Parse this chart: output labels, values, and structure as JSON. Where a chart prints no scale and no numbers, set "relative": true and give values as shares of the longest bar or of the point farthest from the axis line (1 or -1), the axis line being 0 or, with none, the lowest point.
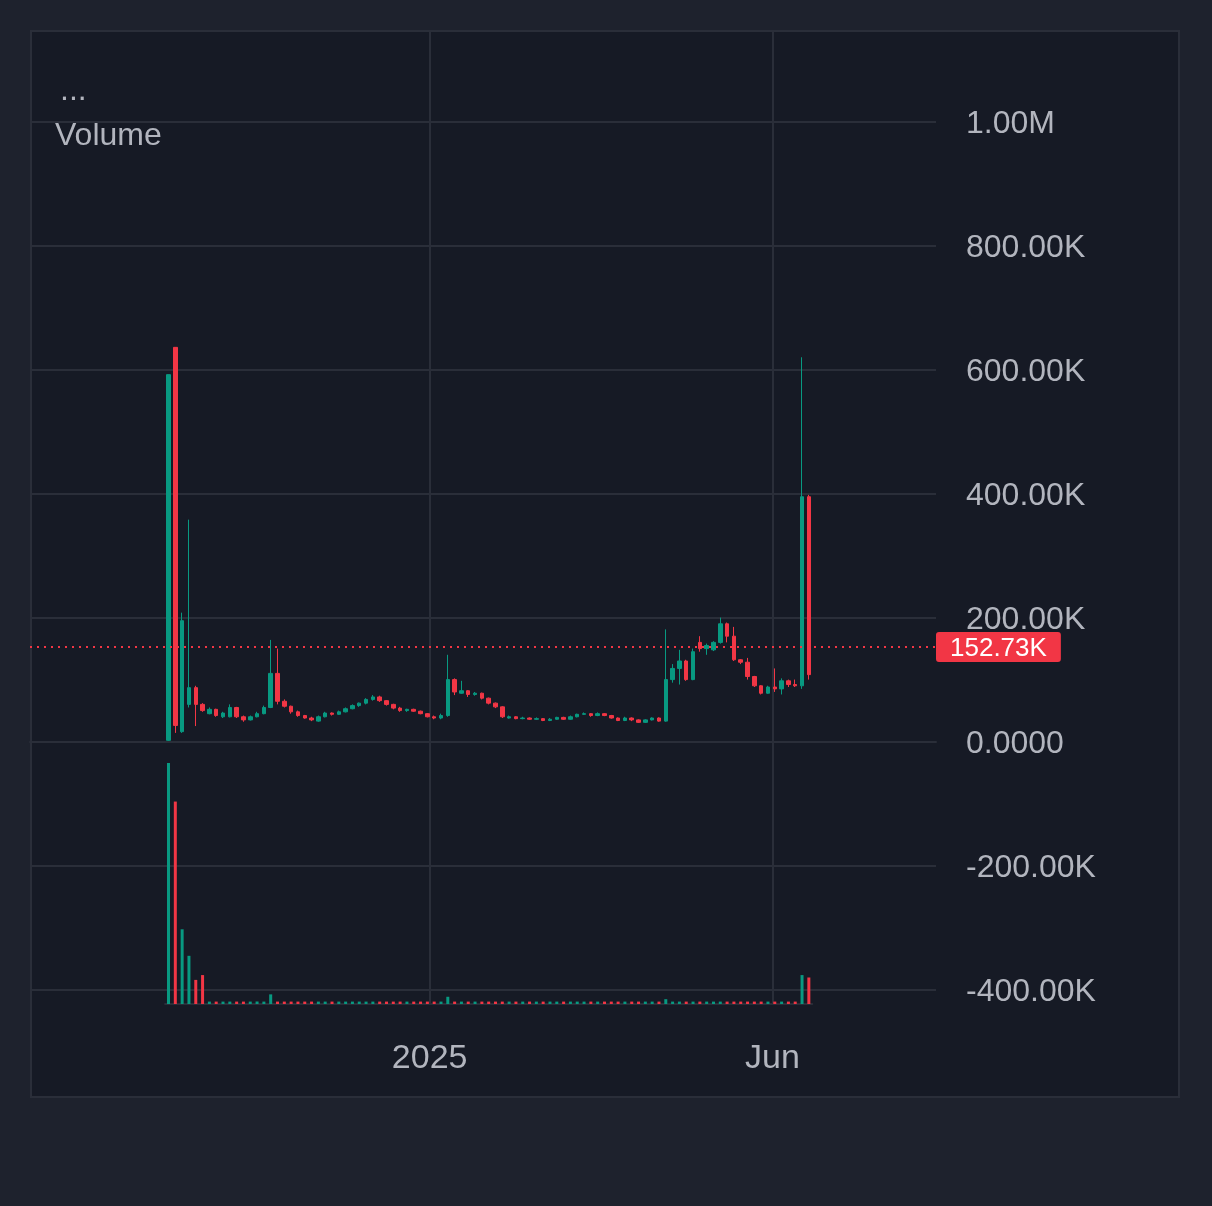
{
  "chart_data": [
    {
      "type": "candlestick",
      "title": "...",
      "annotations": [
        "Volume"
      ],
      "xlim": [
        "2024-07-09",
        "2025-08-12"
      ],
      "xticks": [
        {
          "value": "2025-01-01",
          "label": "2025"
        },
        {
          "value": "2025-06-01",
          "label": "Jun"
        }
      ],
      "ylim": [
        -425000,
        1148000
      ],
      "yticks": [
        {
          "value": -400000,
          "label": "-400.00K"
        },
        {
          "value": -200000,
          "label": "-200.00K"
        },
        {
          "value": 0,
          "label": "0.0000"
        },
        {
          "value": 200000,
          "label": "200.00K"
        },
        {
          "value": 400000,
          "label": "400.00K"
        },
        {
          "value": 600000,
          "label": "600.00K"
        },
        {
          "value": 800000,
          "label": "800.00K"
        },
        {
          "value": 1000000,
          "label": "1.00M"
        }
      ],
      "grid": true,
      "ref_lines": [
        {
          "axis": "y",
          "value": 152730,
          "label": "152.73K",
          "color": "#f23645",
          "line_style": "dotted"
        }
      ],
      "x": [
        "2024-09-08",
        "2024-09-11",
        "2024-09-14",
        "2024-09-17",
        "2024-09-20",
        "2024-09-23",
        "2024-09-26",
        "2024-09-29",
        "2024-10-02",
        "2024-10-05",
        "2024-10-08",
        "2024-10-11",
        "2024-10-14",
        "2024-10-17",
        "2024-10-20",
        "2024-10-23",
        "2024-10-26",
        "2024-10-29",
        "2024-11-01",
        "2024-11-04",
        "2024-11-07",
        "2024-11-10",
        "2024-11-13",
        "2024-11-16",
        "2024-11-19",
        "2024-11-22",
        "2024-11-25",
        "2024-11-28",
        "2024-12-01",
        "2024-12-04",
        "2024-12-07",
        "2024-12-10",
        "2024-12-13",
        "2024-12-16",
        "2024-12-19",
        "2024-12-22",
        "2024-12-25",
        "2024-12-28",
        "2024-12-31",
        "2025-01-03",
        "2025-01-06",
        "2025-01-09",
        "2025-01-12",
        "2025-01-15",
        "2025-01-18",
        "2025-01-21",
        "2025-01-24",
        "2025-01-27",
        "2025-01-30",
        "2025-02-02",
        "2025-02-05",
        "2025-02-08",
        "2025-02-11",
        "2025-02-14",
        "2025-02-17",
        "2025-02-20",
        "2025-02-23",
        "2025-02-26",
        "2025-03-01",
        "2025-03-04",
        "2025-03-07",
        "2025-03-10",
        "2025-03-13",
        "2025-03-16",
        "2025-03-19",
        "2025-03-22",
        "2025-03-25",
        "2025-03-28",
        "2025-03-31",
        "2025-04-03",
        "2025-04-06",
        "2025-04-09",
        "2025-04-12",
        "2025-04-15",
        "2025-04-18",
        "2025-04-21",
        "2025-04-24",
        "2025-04-27",
        "2025-04-30",
        "2025-05-03",
        "2025-05-06",
        "2025-05-09",
        "2025-05-12",
        "2025-05-15",
        "2025-05-18",
        "2025-05-21",
        "2025-05-24",
        "2025-05-27",
        "2025-05-30",
        "2025-06-02",
        "2025-06-05",
        "2025-06-08",
        "2025-06-11",
        "2025-06-14",
        "2025-06-17"
      ],
      "ohlc": [
        [
          2000,
          592000,
          1000,
          592000
        ],
        [
          636000,
          636000,
          14000,
          26000
        ],
        [
          16000,
          208000,
          14000,
          195000
        ],
        [
          60000,
          358000,
          55000,
          87000
        ],
        [
          87000,
          90000,
          25000,
          60000
        ],
        [
          60000,
          62000,
          48000,
          50000
        ],
        [
          45000,
          55000,
          44000,
          52000
        ],
        [
          52000,
          53000,
          40000,
          42000
        ],
        [
          40000,
          48000,
          38000,
          46000
        ],
        [
          40000,
          60000,
          39000,
          55000
        ],
        [
          55000,
          56000,
          38000,
          40000
        ],
        [
          40000,
          42000,
          32000,
          35000
        ],
        [
          35000,
          42000,
          34000,
          40000
        ],
        [
          40000,
          48000,
          39000,
          45000
        ],
        [
          45000,
          58000,
          44000,
          55000
        ],
        [
          55000,
          164000,
          54000,
          110000
        ],
        [
          110000,
          150000,
          60000,
          65000
        ],
        [
          65000,
          68000,
          55000,
          57000
        ],
        [
          57000,
          58000,
          45000,
          48000
        ],
        [
          48000,
          50000,
          40000,
          42000
        ],
        [
          42000,
          43000,
          37000,
          38000
        ],
        [
          38000,
          40000,
          33000,
          35000
        ],
        [
          33000,
          42000,
          32000,
          40000
        ],
        [
          40000,
          48000,
          39000,
          46000
        ],
        [
          46000,
          47000,
          42000,
          44000
        ],
        [
          44000,
          50000,
          43000,
          48000
        ],
        [
          48000,
          55000,
          47000,
          53000
        ],
        [
          53000,
          60000,
          52000,
          58000
        ],
        [
          58000,
          63000,
          56000,
          62000
        ],
        [
          62000,
          70000,
          60000,
          68000
        ],
        [
          68000,
          75000,
          66000,
          72000
        ],
        [
          72000,
          74000,
          64000,
          66000
        ],
        [
          66000,
          67000,
          58000,
          60000
        ],
        [
          60000,
          61000,
          52000,
          54000
        ],
        [
          54000,
          56000,
          48000,
          50000
        ],
        [
          50000,
          53000,
          48000,
          52000
        ],
        [
          52000,
          53000,
          48000,
          49000
        ],
        [
          49000,
          50000,
          44000,
          45000
        ],
        [
          45000,
          46000,
          39000,
          40000
        ],
        [
          40000,
          42000,
          36000,
          38000
        ],
        [
          38000,
          45000,
          36000,
          42000
        ],
        [
          42000,
          140000,
          40000,
          100000
        ],
        [
          100000,
          102000,
          75000,
          80000
        ],
        [
          78000,
          98000,
          77000,
          82000
        ],
        [
          82000,
          83000,
          72000,
          76000
        ],
        [
          76000,
          80000,
          74000,
          78000
        ],
        [
          78000,
          79000,
          68000,
          70000
        ],
        [
          70000,
          71000,
          60000,
          62000
        ],
        [
          62000,
          63000,
          54000,
          56000
        ],
        [
          56000,
          57000,
          38000,
          40000
        ],
        [
          38000,
          42000,
          37000,
          40000
        ],
        [
          40000,
          41000,
          36000,
          37000
        ],
        [
          37000,
          40000,
          36000,
          38000
        ],
        [
          38000,
          39000,
          35000,
          36000
        ],
        [
          36000,
          39000,
          35000,
          37000
        ],
        [
          37000,
          38000,
          33000,
          34000
        ],
        [
          34000,
          38000,
          33000,
          36000
        ],
        [
          36000,
          40000,
          35000,
          39000
        ],
        [
          39000,
          40000,
          35000,
          36000
        ],
        [
          36000,
          42000,
          35000,
          40000
        ],
        [
          40000,
          45000,
          39000,
          44000
        ],
        [
          44000,
          47000,
          43000,
          45000
        ],
        [
          45000,
          46000,
          40000,
          42000
        ],
        [
          42000,
          47000,
          41000,
          45000
        ],
        [
          45000,
          46000,
          41000,
          42000
        ],
        [
          42000,
          43000,
          37000,
          38000
        ],
        [
          38000,
          39000,
          33000,
          34000
        ],
        [
          34000,
          40000,
          33000,
          38000
        ],
        [
          38000,
          39000,
          33000,
          35000
        ],
        [
          35000,
          36000,
          30000,
          31000
        ],
        [
          31000,
          36000,
          30000,
          35000
        ],
        [
          35000,
          39000,
          34000,
          38000
        ],
        [
          38000,
          39000,
          32000,
          33000
        ],
        [
          33000,
          181000,
          32000,
          100000
        ],
        [
          100000,
          125000,
          95000,
          118000
        ],
        [
          118000,
          148000,
          92000,
          130000
        ],
        [
          130000,
          132000,
          98000,
          100000
        ],
        [
          100000,
          150000,
          99000,
          145000
        ],
        [
          160000,
          170000,
          145000,
          150000
        ],
        [
          150000,
          158000,
          140000,
          155000
        ],
        [
          148000,
          162000,
          146000,
          160000
        ],
        [
          160000,
          200000,
          158000,
          190000
        ],
        [
          190000,
          192000,
          160000,
          170000
        ],
        [
          170000,
          185000,
          130000,
          132000
        ],
        [
          132000,
          133000,
          125000,
          128000
        ],
        [
          128000,
          135000,
          100000,
          105000
        ],
        [
          105000,
          106000,
          88000,
          90000
        ],
        [
          90000,
          91000,
          76000,
          78000
        ],
        [
          78000,
          90000,
          77000,
          88000
        ],
        [
          88000,
          118000,
          80000,
          85000
        ],
        [
          85000,
          102000,
          76000,
          98000
        ],
        [
          98000,
          100000,
          88000,
          92000
        ],
        [
          92000,
          100000,
          88000,
          90000
        ],
        [
          90000,
          620000,
          85000,
          395000
        ],
        [
          395000,
          398000,
          100000,
          108000
        ]
      ],
      "colors": [
        "#089981",
        "#f23645",
        "#089981",
        "#089981",
        "#f23645",
        "#f23645",
        "#089981",
        "#f23645",
        "#089981",
        "#089981",
        "#f23645",
        "#f23645",
        "#089981",
        "#089981",
        "#089981",
        "#089981",
        "#f23645",
        "#f23645",
        "#f23645",
        "#f23645",
        "#f23645",
        "#f23645",
        "#089981",
        "#089981",
        "#f23645",
        "#089981",
        "#089981",
        "#089981",
        "#089981",
        "#089981",
        "#089981",
        "#f23645",
        "#f23645",
        "#f23645",
        "#f23645",
        "#089981",
        "#f23645",
        "#f23645",
        "#f23645",
        "#f23645",
        "#089981",
        "#089981",
        "#f23645",
        "#089981",
        "#f23645",
        "#089981",
        "#f23645",
        "#f23645",
        "#f23645",
        "#f23645",
        "#089981",
        "#f23645",
        "#089981",
        "#f23645",
        "#089981",
        "#f23645",
        "#089981",
        "#089981",
        "#f23645",
        "#089981",
        "#089981",
        "#089981",
        "#f23645",
        "#089981",
        "#f23645",
        "#f23645",
        "#f23645",
        "#089981",
        "#f23645",
        "#f23645",
        "#089981",
        "#089981",
        "#f23645",
        "#089981",
        "#089981",
        "#089981",
        "#f23645",
        "#089981",
        "#f23645",
        "#089981",
        "#089981",
        "#089981",
        "#f23645",
        "#f23645",
        "#f23645",
        "#f23645",
        "#f23645",
        "#f23645",
        "#089981",
        "#f23645",
        "#089981",
        "#f23645",
        "#f23645",
        "#089981",
        "#f23645"
      ]
    },
    {
      "type": "bar",
      "relative": true,
      "categories": [
        null,
        null,
        null,
        null,
        null,
        null,
        null,
        null,
        null,
        null,
        null,
        null,
        null,
        null,
        null,
        null,
        null,
        null,
        null,
        null,
        null,
        null,
        null,
        null,
        null,
        null,
        null,
        null,
        null,
        null,
        null,
        null,
        null,
        null,
        null,
        null,
        null,
        null,
        null,
        null,
        null,
        null,
        null,
        null,
        null,
        null,
        null,
        null,
        null,
        null,
        null,
        null,
        null,
        null,
        null,
        null,
        null,
        null,
        null,
        null,
        null,
        null,
        null,
        null,
        null,
        null,
        null,
        null,
        null,
        null,
        null,
        null,
        null,
        null,
        null,
        null,
        null,
        null,
        null,
        null,
        null,
        null,
        null,
        null,
        null,
        null,
        null,
        null,
        null,
        null,
        null,
        null,
        null,
        null,
        null
      ],
      "values": [
        1,
        0.84,
        0.31,
        0.2,
        0.1,
        0.12,
        0.01,
        0.01,
        0.01,
        0.01,
        0.01,
        0.01,
        0.01,
        0.01,
        0.01,
        0.04,
        0.01,
        0.01,
        0.01,
        0.01,
        0.01,
        0.01,
        0.01,
        0.01,
        0.01,
        0.01,
        0.01,
        0.01,
        0.01,
        0.01,
        0.01,
        0.01,
        0.01,
        0.01,
        0.01,
        0.01,
        0.01,
        0.01,
        0.01,
        0.01,
        0.01,
        0.03,
        0.01,
        0.01,
        0.01,
        0.01,
        0.01,
        0.01,
        0.01,
        0.01,
        0.01,
        0.01,
        0.01,
        0.01,
        0.01,
        0.01,
        0.01,
        0.01,
        0.01,
        0.01,
        0.01,
        0.01,
        0.01,
        0.01,
        0.01,
        0.01,
        0.01,
        0.01,
        0.01,
        0.01,
        0.01,
        0.01,
        0.01,
        0.02,
        0.01,
        0.01,
        0.01,
        0.01,
        0.01,
        0.01,
        0.01,
        0.01,
        0.01,
        0.01,
        0.01,
        0.01,
        0.01,
        0.01,
        0.01,
        0.01,
        0.01,
        0.01,
        0.01,
        0.12,
        0.11
      ],
      "colors": [
        "#089981",
        "#f23645",
        "#089981",
        "#089981",
        "#f23645",
        "#f23645",
        "#089981",
        "#f23645",
        "#089981",
        "#089981",
        "#f23645",
        "#f23645",
        "#089981",
        "#089981",
        "#089981",
        "#089981",
        "#f23645",
        "#f23645",
        "#f23645",
        "#f23645",
        "#f23645",
        "#f23645",
        "#089981",
        "#089981",
        "#f23645",
        "#089981",
        "#089981",
        "#089981",
        "#089981",
        "#089981",
        "#089981",
        "#f23645",
        "#f23645",
        "#f23645",
        "#f23645",
        "#089981",
        "#f23645",
        "#f23645",
        "#f23645",
        "#f23645",
        "#089981",
        "#089981",
        "#f23645",
        "#089981",
        "#f23645",
        "#089981",
        "#f23645",
        "#f23645",
        "#f23645",
        "#f23645",
        "#089981",
        "#f23645",
        "#089981",
        "#f23645",
        "#089981",
        "#f23645",
        "#089981",
        "#089981",
        "#f23645",
        "#089981",
        "#089981",
        "#089981",
        "#f23645",
        "#089981",
        "#f23645",
        "#f23645",
        "#f23645",
        "#089981",
        "#f23645",
        "#f23645",
        "#089981",
        "#089981",
        "#f23645",
        "#089981",
        "#089981",
        "#089981",
        "#f23645",
        "#089981",
        "#f23645",
        "#089981",
        "#089981",
        "#089981",
        "#f23645",
        "#f23645",
        "#f23645",
        "#f23645",
        "#f23645",
        "#f23645",
        "#089981",
        "#f23645",
        "#089981",
        "#f23645",
        "#f23645",
        "#089981",
        "#f23645"
      ]
    }
  ]
}
